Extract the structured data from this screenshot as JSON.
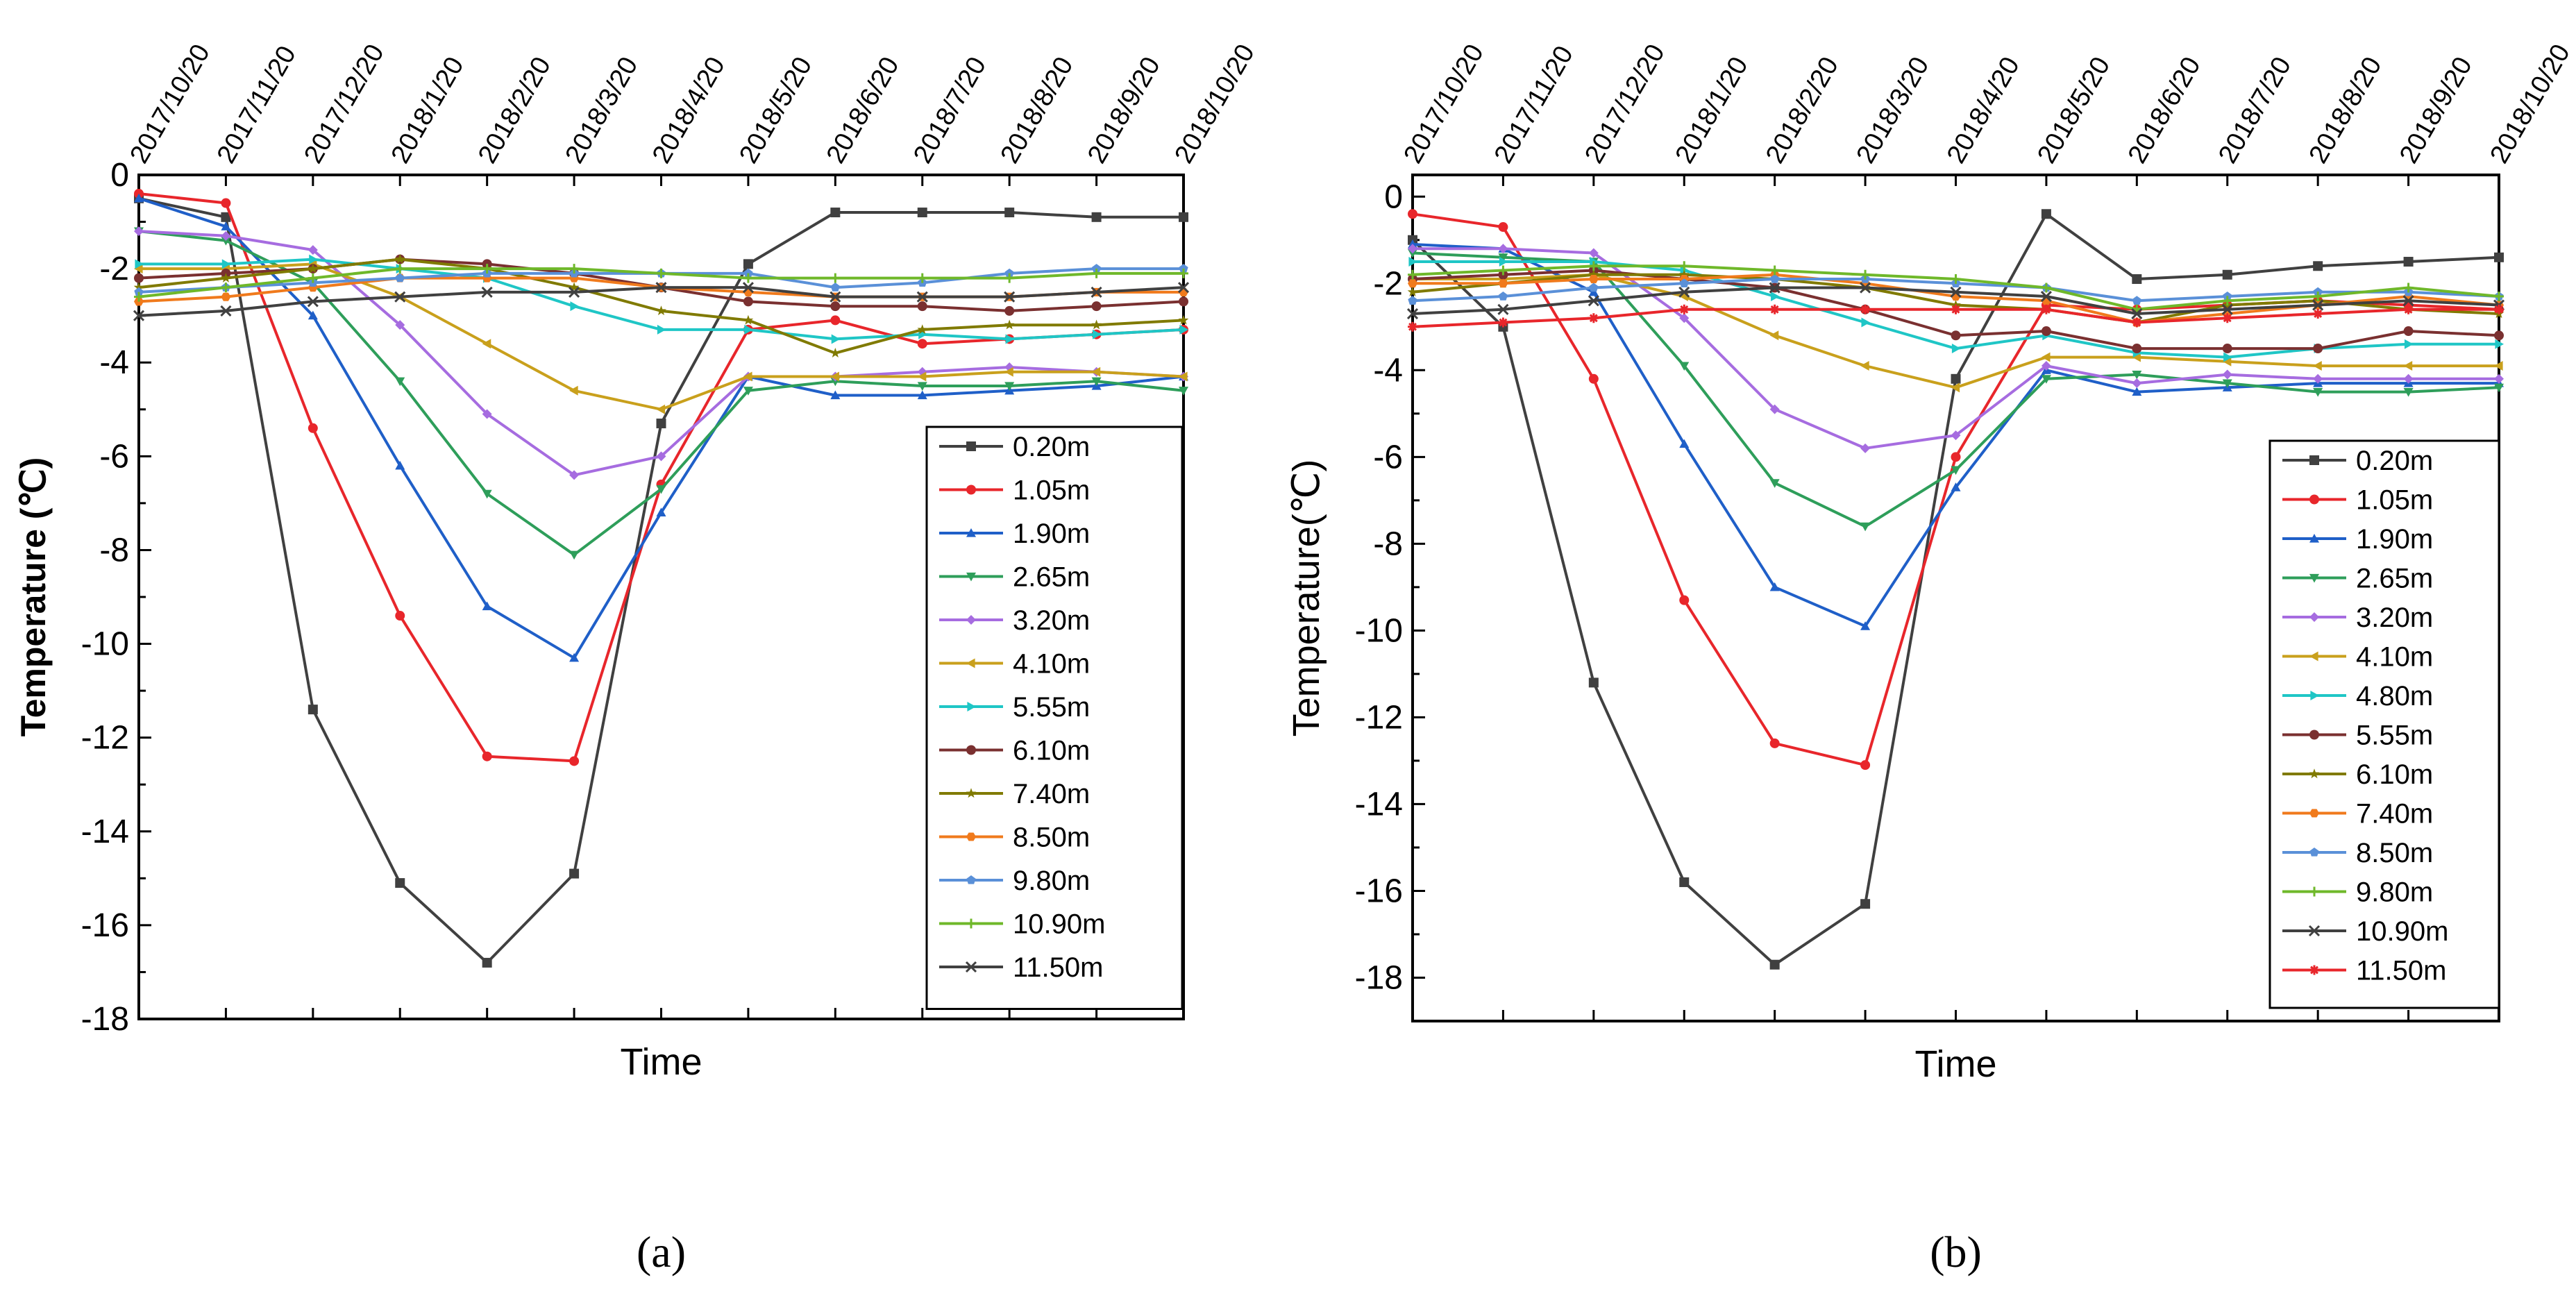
{
  "chart_data": [
    {
      "type": "line",
      "panel": "a",
      "caption": "(a)",
      "xlabel": "Time",
      "ylabel": "Temperature (℃)",
      "ylim": [
        -18,
        0
      ],
      "yticks": [
        0,
        -2,
        -4,
        -6,
        -8,
        -10,
        -12,
        -14,
        -16,
        -18
      ],
      "categories": [
        "2017/10/20",
        "2017/11/20",
        "2017/12/20",
        "2018/1/20",
        "2018/2/20",
        "2018/3/20",
        "2018/4/20",
        "2018/5/20",
        "2018/6/20",
        "2018/7/20",
        "2018/8/20",
        "2018/9/20",
        "2018/10/20"
      ],
      "series": [
        {
          "name": "0.20m",
          "color": "#404040",
          "marker": "square",
          "values": [
            -0.5,
            -0.9,
            -11.4,
            -15.1,
            -16.8,
            -14.9,
            -5.3,
            -1.9,
            -0.8,
            -0.8,
            -0.8,
            -0.9,
            -0.9
          ]
        },
        {
          "name": "1.05m",
          "color": "#e8262b",
          "marker": "circle",
          "values": [
            -0.4,
            -0.6,
            -5.4,
            -9.4,
            -12.4,
            -12.5,
            -6.6,
            -3.3,
            -3.1,
            -3.6,
            -3.5,
            -3.4,
            -3.3
          ]
        },
        {
          "name": "1.90m",
          "color": "#1f5fc8",
          "marker": "triUp",
          "values": [
            -0.5,
            -1.1,
            -3.0,
            -6.2,
            -9.2,
            -10.3,
            -7.2,
            -4.3,
            -4.7,
            -4.7,
            -4.6,
            -4.5,
            -4.3
          ]
        },
        {
          "name": "2.65m",
          "color": "#2e9e5a",
          "marker": "triDown",
          "values": [
            -1.2,
            -1.4,
            -2.3,
            -4.4,
            -6.8,
            -8.1,
            -6.7,
            -4.6,
            -4.4,
            -4.5,
            -4.5,
            -4.4,
            -4.6
          ]
        },
        {
          "name": "3.20m",
          "color": "#a66ce0",
          "marker": "diamond",
          "values": [
            -1.2,
            -1.3,
            -1.6,
            -3.2,
            -5.1,
            -6.4,
            -6.0,
            -4.3,
            -4.3,
            -4.2,
            -4.1,
            -4.2,
            -4.3
          ]
        },
        {
          "name": "4.10m",
          "color": "#c9a01c",
          "marker": "triLeft",
          "values": [
            -2.0,
            -2.0,
            -1.9,
            -2.6,
            -3.6,
            -4.6,
            -5.0,
            -4.3,
            -4.3,
            -4.3,
            -4.2,
            -4.2,
            -4.3
          ]
        },
        {
          "name": "5.55m",
          "color": "#1fc6c6",
          "marker": "triRight",
          "values": [
            -1.9,
            -1.9,
            -1.8,
            -2.0,
            -2.2,
            -2.8,
            -3.3,
            -3.3,
            -3.5,
            -3.4,
            -3.5,
            -3.4,
            -3.3
          ]
        },
        {
          "name": "6.10m",
          "color": "#7a3030",
          "marker": "circle",
          "values": [
            -2.2,
            -2.1,
            -2.0,
            -1.8,
            -1.9,
            -2.1,
            -2.4,
            -2.7,
            -2.8,
            -2.8,
            -2.9,
            -2.8,
            -2.7
          ]
        },
        {
          "name": "7.40m",
          "color": "#807a00",
          "marker": "star",
          "values": [
            -2.4,
            -2.2,
            -2.0,
            -1.8,
            -2.0,
            -2.4,
            -2.9,
            -3.1,
            -3.8,
            -3.3,
            -3.2,
            -3.2,
            -3.1
          ]
        },
        {
          "name": "8.50m",
          "color": "#f07a1c",
          "marker": "hexagon",
          "values": [
            -2.7,
            -2.6,
            -2.4,
            -2.2,
            -2.2,
            -2.2,
            -2.4,
            -2.5,
            -2.6,
            -2.6,
            -2.6,
            -2.5,
            -2.5
          ]
        },
        {
          "name": "9.80m",
          "color": "#5a90d8",
          "marker": "penta",
          "values": [
            -2.5,
            -2.4,
            -2.3,
            -2.2,
            -2.1,
            -2.1,
            -2.1,
            -2.1,
            -2.4,
            -2.3,
            -2.1,
            -2.0,
            -2.0
          ]
        },
        {
          "name": "10.90m",
          "color": "#6fb82a",
          "marker": "plus",
          "values": [
            -2.6,
            -2.4,
            -2.2,
            -2.0,
            -2.0,
            -2.0,
            -2.1,
            -2.2,
            -2.2,
            -2.2,
            -2.2,
            -2.1,
            -2.1
          ]
        },
        {
          "name": "11.50m",
          "color": "#404040",
          "marker": "cross",
          "values": [
            -3.0,
            -2.9,
            -2.7,
            -2.6,
            -2.5,
            -2.5,
            -2.4,
            -2.4,
            -2.6,
            -2.6,
            -2.6,
            -2.5,
            -2.4
          ]
        }
      ]
    },
    {
      "type": "line",
      "panel": "b",
      "caption": "(b)",
      "xlabel": "Time",
      "ylabel": "Temperature(℃)",
      "ylim": [
        -19,
        0.5
      ],
      "yticks": [
        0,
        -2,
        -4,
        -6,
        -8,
        -10,
        -12,
        -14,
        -16,
        -18
      ],
      "categories": [
        "2017/10/20",
        "2017/11/20",
        "2017/12/20",
        "2018/1/20",
        "2018/2/20",
        "2018/3/20",
        "2018/4/20",
        "2018/5/20",
        "2018/6/20",
        "2018/7/20",
        "2018/8/20",
        "2018/9/20",
        "2018/10/20"
      ],
      "series": [
        {
          "name": "0.20m",
          "color": "#404040",
          "marker": "square",
          "values": [
            -1.0,
            -3.0,
            -11.2,
            -15.8,
            -17.7,
            -16.3,
            -4.2,
            -0.4,
            -1.9,
            -1.8,
            -1.6,
            -1.5,
            -1.4
          ]
        },
        {
          "name": "1.05m",
          "color": "#e8262b",
          "marker": "circle",
          "values": [
            -0.4,
            -0.7,
            -4.2,
            -9.3,
            -12.6,
            -13.1,
            -6.0,
            -2.5,
            -2.6,
            -2.5,
            -2.4,
            -2.5,
            -2.6
          ]
        },
        {
          "name": "1.90m",
          "color": "#1f5fc8",
          "marker": "triUp",
          "values": [
            -1.1,
            -1.2,
            -2.2,
            -5.7,
            -9.0,
            -9.9,
            -6.7,
            -4.0,
            -4.5,
            -4.4,
            -4.3,
            -4.3,
            -4.3
          ]
        },
        {
          "name": "2.65m",
          "color": "#2e9e5a",
          "marker": "triDown",
          "values": [
            -1.3,
            -1.4,
            -1.5,
            -3.9,
            -6.6,
            -7.6,
            -6.3,
            -4.2,
            -4.1,
            -4.3,
            -4.5,
            -4.5,
            -4.4
          ]
        },
        {
          "name": "3.20m",
          "color": "#a66ce0",
          "marker": "diamond",
          "values": [
            -1.2,
            -1.2,
            -1.3,
            -2.8,
            -4.9,
            -5.8,
            -5.5,
            -3.9,
            -4.3,
            -4.1,
            -4.2,
            -4.2,
            -4.2
          ]
        },
        {
          "name": "4.10m",
          "color": "#c9a01c",
          "marker": "triLeft",
          "values": [
            -1.9,
            -1.9,
            -1.8,
            -2.3,
            -3.2,
            -3.9,
            -4.4,
            -3.7,
            -3.7,
            -3.8,
            -3.9,
            -3.9,
            -3.9
          ]
        },
        {
          "name": "4.80m",
          "color": "#1fc6c6",
          "marker": "triRight",
          "values": [
            -1.5,
            -1.5,
            -1.5,
            -1.7,
            -2.3,
            -2.9,
            -3.5,
            -3.2,
            -3.6,
            -3.7,
            -3.5,
            -3.4,
            -3.4
          ]
        },
        {
          "name": "5.55m",
          "color": "#7a3030",
          "marker": "circle",
          "values": [
            -1.9,
            -1.8,
            -1.7,
            -1.9,
            -2.1,
            -2.6,
            -3.2,
            -3.1,
            -3.5,
            -3.5,
            -3.5,
            -3.1,
            -3.2
          ]
        },
        {
          "name": "6.10m",
          "color": "#807a00",
          "marker": "star",
          "values": [
            -2.2,
            -2.0,
            -1.8,
            -1.8,
            -1.9,
            -2.1,
            -2.5,
            -2.6,
            -2.9,
            -2.5,
            -2.4,
            -2.6,
            -2.7
          ]
        },
        {
          "name": "7.40m",
          "color": "#f07a1c",
          "marker": "hexagon",
          "values": [
            -2.0,
            -2.0,
            -1.9,
            -1.9,
            -1.8,
            -2.0,
            -2.3,
            -2.4,
            -2.9,
            -2.7,
            -2.5,
            -2.3,
            -2.5
          ]
        },
        {
          "name": "8.50m",
          "color": "#5a90d8",
          "marker": "penta",
          "values": [
            -2.4,
            -2.3,
            -2.1,
            -2.0,
            -1.9,
            -1.9,
            -2.0,
            -2.1,
            -2.4,
            -2.3,
            -2.2,
            -2.2,
            -2.3
          ]
        },
        {
          "name": "9.80m",
          "color": "#6fb82a",
          "marker": "plus",
          "values": [
            -1.8,
            -1.7,
            -1.6,
            -1.6,
            -1.7,
            -1.8,
            -1.9,
            -2.1,
            -2.6,
            -2.4,
            -2.3,
            -2.1,
            -2.3
          ]
        },
        {
          "name": "10.90m",
          "color": "#404040",
          "marker": "cross",
          "values": [
            -2.7,
            -2.6,
            -2.4,
            -2.2,
            -2.1,
            -2.1,
            -2.2,
            -2.3,
            -2.7,
            -2.6,
            -2.5,
            -2.4,
            -2.5
          ]
        },
        {
          "name": "11.50m",
          "color": "#e8262b",
          "marker": "asterisk",
          "values": [
            -3.0,
            -2.9,
            -2.8,
            -2.6,
            -2.6,
            -2.6,
            -2.6,
            -2.6,
            -2.9,
            -2.8,
            -2.7,
            -2.6,
            -2.6
          ]
        }
      ]
    }
  ]
}
